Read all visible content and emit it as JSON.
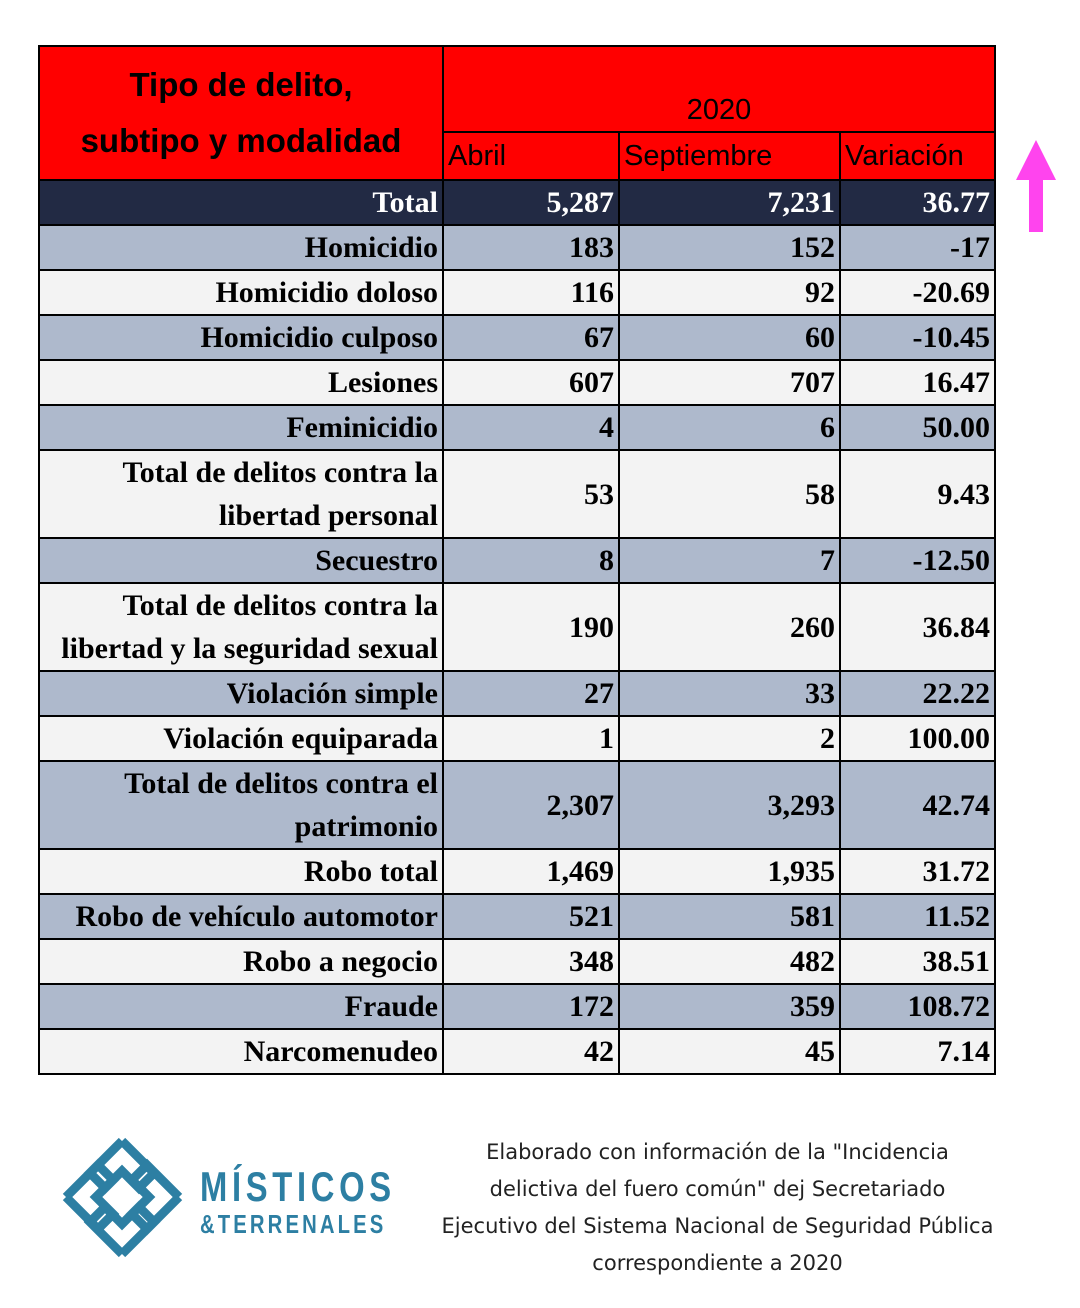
{
  "table": {
    "header": {
      "title_line1": "Tipo de delito,",
      "title_line2": "subtipo y modalidad",
      "year": "2020",
      "columns": [
        "Abril",
        "Septiembre",
        "Variación"
      ]
    },
    "rows": [
      {
        "name": "Total",
        "abril": "5,287",
        "septiembre": "7,231",
        "variacion": "36.77",
        "style": "total"
      },
      {
        "name": "Homicidio",
        "abril": "183",
        "septiembre": "152",
        "variacion": "-17",
        "style": "shade"
      },
      {
        "name": "Homicidio doloso",
        "abril": "116",
        "septiembre": "92",
        "variacion": "-20.69",
        "style": "plain"
      },
      {
        "name": "Homicidio culposo",
        "abril": "67",
        "septiembre": "60",
        "variacion": "-10.45",
        "style": "shade"
      },
      {
        "name": "Lesiones",
        "abril": "607",
        "septiembre": "707",
        "variacion": "16.47",
        "style": "plain"
      },
      {
        "name": "Feminicidio",
        "abril": "4",
        "septiembre": "6",
        "variacion": "50.00",
        "style": "shade"
      },
      {
        "name": "Total de delitos contra la libertad personal",
        "abril": "53",
        "septiembre": "58",
        "variacion": "9.43",
        "style": "plain"
      },
      {
        "name": "Secuestro",
        "abril": "8",
        "septiembre": "7",
        "variacion": "-12.50",
        "style": "shade"
      },
      {
        "name": "Total de delitos contra la libertad y la seguridad sexual",
        "abril": "190",
        "septiembre": "260",
        "variacion": "36.84",
        "style": "plain"
      },
      {
        "name": "Violación simple",
        "abril": "27",
        "septiembre": "33",
        "variacion": "22.22",
        "style": "shade"
      },
      {
        "name": "Violación equiparada",
        "abril": "1",
        "septiembre": "2",
        "variacion": "100.00",
        "style": "plain"
      },
      {
        "name": "Total de delitos contra el patrimonio",
        "abril": "2,307",
        "septiembre": "3,293",
        "variacion": "42.74",
        "style": "shade"
      },
      {
        "name": "Robo total",
        "abril": "1,469",
        "septiembre": "1,935",
        "variacion": "31.72",
        "style": "plain"
      },
      {
        "name": "Robo de vehículo automotor",
        "abril": "521",
        "septiembre": "581",
        "variacion": "11.52",
        "style": "shade"
      },
      {
        "name": "Robo a negocio",
        "abril": "348",
        "septiembre": "482",
        "variacion": "38.51",
        "style": "plain"
      },
      {
        "name": "Fraude",
        "abril": "172",
        "septiembre": "359",
        "variacion": "108.72",
        "style": "shade"
      },
      {
        "name": "Narcomenudeo",
        "abril": "42",
        "septiembre": "45",
        "variacion": "7.14",
        "style": "plain"
      }
    ]
  },
  "colors": {
    "header_red": "#ff0000",
    "total_row": "#222a44",
    "shade_row": "#aeb9cc",
    "plain_row": "#f3f3f3",
    "arrow": "#ff44ee",
    "logo": "#2d7fa3"
  },
  "trend_icon": "up-arrow-icon",
  "logo": {
    "line1": "MÍSTICOS",
    "line2": "&TERRENALES"
  },
  "source_note": "Elaborado con información de la \"Incidencia delictiva del fuero común\" dej Secretariado Ejecutivo del Sistema Nacional de Seguridad Pública correspondiente a 2020"
}
